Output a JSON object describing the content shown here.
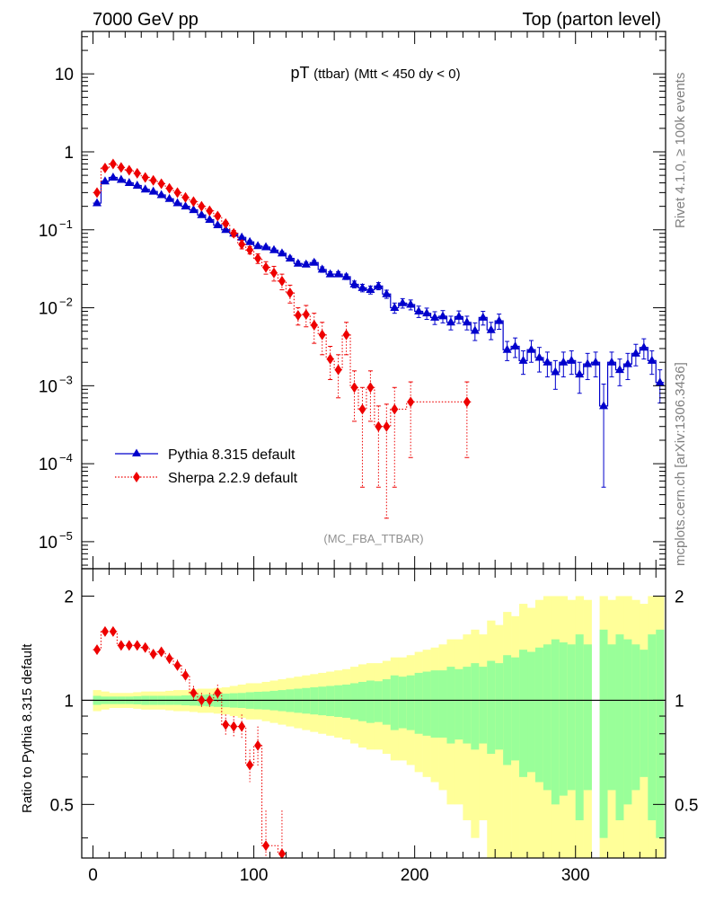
{
  "header": {
    "left": "7000 GeV pp",
    "right": "Top (parton level)"
  },
  "side_text": {
    "rivet": "Rivet 4.1.0, ≥ 100k events",
    "mcplots": "mcplots.cern.ch [arXiv:1306.3436]"
  },
  "analysis_tag": "(MC_FBA_TTBAR)",
  "colors": {
    "pythia": "#0000cc",
    "sherpa": "#ee0000",
    "band_inner": "#99ff99",
    "band_outer": "#ffff99"
  },
  "chart_data": [
    {
      "type": "line",
      "panel": "main",
      "title_main": "pT",
      "title_small": "(ttbar)",
      "title_rest": "(Mtt < 450 dy < 0)",
      "yscale": "log",
      "xlim": [
        -7,
        356
      ],
      "ylim": [
        4.5e-06,
        35
      ],
      "x_ticks": [
        0,
        100,
        200,
        300
      ],
      "y_ticks": [
        {
          "v": 1e-05,
          "label": "10",
          "exp": "−5"
        },
        {
          "v": 0.0001,
          "label": "10",
          "exp": "−4"
        },
        {
          "v": 0.001,
          "label": "10",
          "exp": "−3"
        },
        {
          "v": 0.01,
          "label": "10",
          "exp": "−2"
        },
        {
          "v": 0.1,
          "label": "10",
          "exp": "−1"
        },
        {
          "v": 1,
          "label": "1",
          "exp": ""
        },
        {
          "v": 10,
          "label": "10",
          "exp": ""
        }
      ],
      "legend_position": "bottom-left",
      "series": [
        {
          "name": "Pythia 8.315 default",
          "marker": "triangle",
          "x": [
            2.5,
            7.5,
            12.5,
            17.5,
            22.5,
            27.5,
            32.5,
            37.5,
            42.5,
            47.5,
            52.5,
            57.5,
            62.5,
            67.5,
            72.5,
            77.5,
            82.5,
            87.5,
            92.5,
            97.5,
            102.5,
            107.5,
            112.5,
            117.5,
            122.5,
            127.5,
            132.5,
            137.5,
            142.5,
            147.5,
            152.5,
            157.5,
            162.5,
            167.5,
            172.5,
            177.5,
            182.5,
            187.5,
            192.5,
            197.5,
            202.5,
            207.5,
            212.5,
            217.5,
            222.5,
            227.5,
            232.5,
            237.5,
            242.5,
            247.5,
            252.5,
            257.5,
            262.5,
            267.5,
            272.5,
            277.5,
            282.5,
            287.5,
            292.5,
            297.5,
            302.5,
            307.5,
            312.5,
            317.5,
            322.5,
            327.5,
            332.5,
            337.5,
            342.5,
            347.5,
            352.5
          ],
          "y": [
            0.22,
            0.42,
            0.47,
            0.44,
            0.4,
            0.37,
            0.33,
            0.31,
            0.28,
            0.25,
            0.22,
            0.2,
            0.18,
            0.155,
            0.135,
            0.115,
            0.1,
            0.09,
            0.08,
            0.07,
            0.062,
            0.06,
            0.055,
            0.05,
            0.043,
            0.037,
            0.036,
            0.038,
            0.031,
            0.027,
            0.027,
            0.025,
            0.02,
            0.018,
            0.017,
            0.019,
            0.015,
            0.01,
            0.0115,
            0.011,
            0.009,
            0.0085,
            0.0075,
            0.0078,
            0.0065,
            0.0077,
            0.0065,
            0.0051,
            0.0075,
            0.0052,
            0.0068,
            0.0029,
            0.0032,
            0.0021,
            0.0029,
            0.0023,
            0.002,
            0.0015,
            0.002,
            0.0021,
            0.0014,
            0.0019,
            0.002,
            0.00055,
            0.002,
            0.0016,
            0.0019,
            0.0026,
            0.0031,
            0.0021,
            0.0011
          ],
          "err": [
            0.01,
            0.01,
            0.012,
            0.01,
            0.01,
            0.01,
            0.01,
            0.008,
            0.008,
            0.007,
            0.006,
            0.006,
            0.005,
            0.005,
            0.004,
            0.004,
            0.003,
            0.003,
            0.003,
            0.003,
            0.003,
            0.003,
            0.003,
            0.003,
            0.003,
            0.0025,
            0.0025,
            0.0025,
            0.0025,
            0.002,
            0.002,
            0.002,
            0.002,
            0.002,
            0.002,
            0.002,
            0.0018,
            0.0015,
            0.0016,
            0.0016,
            0.0015,
            0.0014,
            0.0014,
            0.0014,
            0.0013,
            0.0014,
            0.0013,
            0.0013,
            0.0015,
            0.0013,
            0.0015,
            0.0008,
            0.0009,
            0.0007,
            0.0009,
            0.0008,
            0.0007,
            0.0006,
            0.0007,
            0.0007,
            0.0006,
            0.0007,
            0.0007,
            0.0005,
            0.0007,
            0.0006,
            0.0007,
            0.0008,
            0.0009,
            0.0007,
            0.0005
          ]
        },
        {
          "name": "Sherpa 2.2.9 default",
          "marker": "diamond",
          "x": [
            2.5,
            7.5,
            12.5,
            17.5,
            22.5,
            27.5,
            32.5,
            37.5,
            42.5,
            47.5,
            52.5,
            57.5,
            62.5,
            67.5,
            72.5,
            77.5,
            82.5,
            87.5,
            92.5,
            97.5,
            102.5,
            107.5,
            112.5,
            117.5,
            122.5,
            127.5,
            132.5,
            137.5,
            142.5,
            147.5,
            152.5,
            157.5,
            162.5,
            167.5,
            172.5,
            177.5,
            182.5,
            187.5,
            197.5,
            232.5
          ],
          "y": [
            0.3,
            0.62,
            0.7,
            0.63,
            0.58,
            0.53,
            0.47,
            0.43,
            0.39,
            0.34,
            0.3,
            0.26,
            0.23,
            0.2,
            0.175,
            0.15,
            0.12,
            0.09,
            0.065,
            0.055,
            0.043,
            0.033,
            0.028,
            0.022,
            0.0155,
            0.008,
            0.0082,
            0.006,
            0.0045,
            0.0022,
            0.0016,
            0.0045,
            0.00095,
            0.0005,
            0.00095,
            0.0003,
            0.0003,
            0.0005,
            0.00062,
            0.00062
          ],
          "err": [
            0.01,
            0.02,
            0.02,
            0.02,
            0.02,
            0.02,
            0.02,
            0.02,
            0.015,
            0.015,
            0.012,
            0.01,
            0.01,
            0.01,
            0.01,
            0.01,
            0.008,
            0.008,
            0.008,
            0.006,
            0.006,
            0.006,
            0.006,
            0.005,
            0.004,
            0.002,
            0.0025,
            0.0025,
            0.002,
            0.001,
            0.0009,
            0.002,
            0.0006,
            0.00045,
            0.0006,
            0.00025,
            0.00028,
            0.00045,
            0.0005,
            0.0005
          ]
        }
      ]
    },
    {
      "type": "area",
      "panel": "ratio",
      "ylabel": "Ratio to Pythia 8.315 default",
      "yscale": "log",
      "xlim": [
        -7,
        356
      ],
      "ylim": [
        0.35,
        2.4
      ],
      "x_ticks": [
        0,
        100,
        200,
        300
      ],
      "y_ticks": [
        0.5,
        1,
        2
      ],
      "reference_line": 1,
      "band_x": [
        2.5,
        7.5,
        12.5,
        17.5,
        22.5,
        27.5,
        32.5,
        37.5,
        42.5,
        47.5,
        52.5,
        57.5,
        62.5,
        67.5,
        72.5,
        77.5,
        82.5,
        87.5,
        92.5,
        97.5,
        102.5,
        107.5,
        112.5,
        117.5,
        122.5,
        127.5,
        132.5,
        137.5,
        142.5,
        147.5,
        152.5,
        157.5,
        162.5,
        167.5,
        172.5,
        177.5,
        182.5,
        187.5,
        192.5,
        197.5,
        202.5,
        207.5,
        212.5,
        217.5,
        222.5,
        227.5,
        232.5,
        237.5,
        242.5,
        247.5,
        252.5,
        257.5,
        262.5,
        267.5,
        272.5,
        277.5,
        282.5,
        287.5,
        292.5,
        297.5,
        302.5,
        307.5,
        312.5,
        317.5,
        322.5,
        327.5,
        332.5,
        337.5,
        342.5,
        347.5,
        352.5
      ],
      "band_inner_frac": [
        0.03,
        0.025,
        0.025,
        0.025,
        0.025,
        0.027,
        0.03,
        0.03,
        0.03,
        0.03,
        0.03,
        0.033,
        0.035,
        0.037,
        0.04,
        0.043,
        0.045,
        0.048,
        0.05,
        0.055,
        0.058,
        0.06,
        0.065,
        0.07,
        0.075,
        0.08,
        0.085,
        0.09,
        0.095,
        0.1,
        0.105,
        0.11,
        0.12,
        0.13,
        0.14,
        0.135,
        0.15,
        0.18,
        0.17,
        0.18,
        0.2,
        0.21,
        0.22,
        0.22,
        0.25,
        0.23,
        0.25,
        0.28,
        0.25,
        0.3,
        0.28,
        0.35,
        0.33,
        0.4,
        0.38,
        0.42,
        0.45,
        0.5,
        0.47,
        0.45,
        0.55,
        0.45,
        0.45,
        0.6,
        0.45,
        0.55,
        0.5,
        0.45,
        0.4,
        0.55,
        0.6
      ],
      "band_outer_frac": [
        0.07,
        0.06,
        0.05,
        0.05,
        0.05,
        0.055,
        0.06,
        0.06,
        0.06,
        0.065,
        0.07,
        0.07,
        0.075,
        0.08,
        0.08,
        0.085,
        0.09,
        0.1,
        0.11,
        0.12,
        0.12,
        0.13,
        0.14,
        0.15,
        0.16,
        0.17,
        0.18,
        0.19,
        0.2,
        0.21,
        0.22,
        0.23,
        0.25,
        0.27,
        0.28,
        0.28,
        0.3,
        0.33,
        0.33,
        0.35,
        0.38,
        0.4,
        0.42,
        0.45,
        0.5,
        0.5,
        0.55,
        0.6,
        0.55,
        0.7,
        0.65,
        0.8,
        0.75,
        0.9,
        0.85,
        0.95,
        1.0,
        1.0,
        1.0,
        0.95,
        1.0,
        0.95,
        0.95,
        1.0,
        0.95,
        1.0,
        1.0,
        0.95,
        0.9,
        1.0,
        1.0
      ],
      "band_gaps": [
        312.5
      ],
      "series": [
        {
          "name": "Sherpa 2.2.9 default",
          "marker": "diamond",
          "x": [
            2.5,
            7.5,
            12.5,
            17.5,
            22.5,
            27.5,
            32.5,
            37.5,
            42.5,
            47.5,
            52.5,
            57.5,
            62.5,
            67.5,
            72.5,
            77.5,
            82.5,
            87.5,
            92.5,
            97.5,
            102.5,
            107.5,
            117.5
          ],
          "y": [
            1.4,
            1.58,
            1.58,
            1.44,
            1.44,
            1.44,
            1.42,
            1.36,
            1.38,
            1.32,
            1.26,
            1.18,
            1.05,
            1.0,
            1.0,
            1.05,
            0.85,
            0.84,
            0.84,
            0.65,
            0.74,
            0.38,
            0.36
          ],
          "err": [
            0.04,
            0.04,
            0.04,
            0.04,
            0.04,
            0.04,
            0.04,
            0.04,
            0.04,
            0.05,
            0.05,
            0.05,
            0.05,
            0.05,
            0.05,
            0.06,
            0.06,
            0.06,
            0.07,
            0.07,
            0.1,
            0.1,
            0.12
          ]
        }
      ]
    }
  ]
}
